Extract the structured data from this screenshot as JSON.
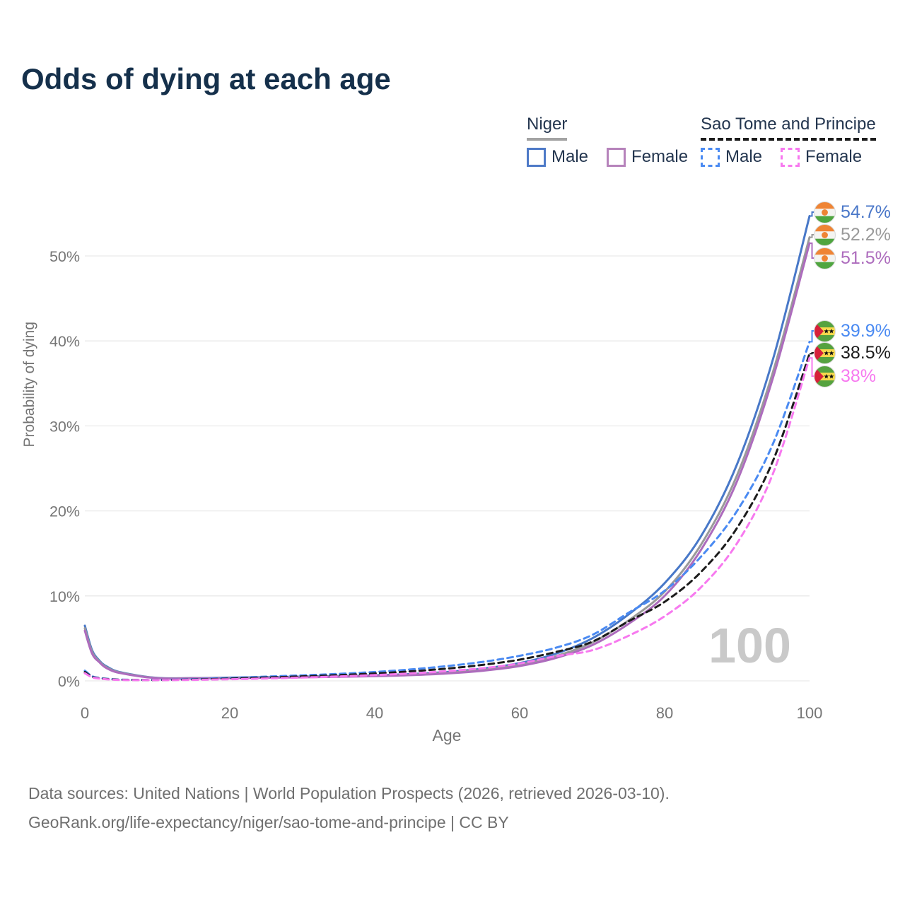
{
  "legend": {
    "groups": [
      {
        "country": "Niger",
        "underline": "solid",
        "underline_color": "#a3a3a3",
        "items": [
          {
            "label": "Male",
            "color": "#4e7ac7",
            "dashed": false
          },
          {
            "label": "Female",
            "color": "#b683bb",
            "dashed": false
          }
        ]
      },
      {
        "country": "Sao Tome and Principe",
        "underline": "dashed",
        "underline_color": "#1c1c1c",
        "items": [
          {
            "label": "Male",
            "color": "#4a8af2",
            "dashed": true
          },
          {
            "label": "Female",
            "color": "#f779ef",
            "dashed": true
          }
        ]
      }
    ]
  },
  "chart_data": {
    "type": "line",
    "title": "Odds of dying at each age",
    "xlabel": "Age",
    "ylabel": "Probability of dying",
    "xlim": [
      0,
      100
    ],
    "ylim": [
      0,
      57
    ],
    "grid": "horizontal",
    "legend_position": "top-right",
    "watermark": "100",
    "x_ticks": [
      0,
      20,
      40,
      60,
      80,
      100
    ],
    "y_tick_values": [
      0,
      10,
      20,
      30,
      40,
      50
    ],
    "y_tick_labels": [
      "0%",
      "10%",
      "20%",
      "30%",
      "40%",
      "50%"
    ],
    "ages": [
      0,
      1,
      2,
      3,
      5,
      10,
      15,
      20,
      25,
      30,
      35,
      40,
      45,
      50,
      55,
      60,
      65,
      70,
      75,
      80,
      85,
      90,
      95,
      100
    ],
    "series": [
      {
        "name": "Niger — Male",
        "color": "#4878c8",
        "dash": null,
        "end_value": 54.7,
        "values": [
          6.5,
          3.6,
          2.4,
          1.7,
          1.0,
          0.35,
          0.33,
          0.38,
          0.44,
          0.5,
          0.57,
          0.66,
          0.8,
          1.05,
          1.45,
          2.1,
          3.2,
          5.0,
          7.8,
          11.5,
          17.0,
          25.5,
          38.0,
          54.7
        ]
      },
      {
        "name": "Niger — Both sexes",
        "color": "#9a9a9a",
        "dash": null,
        "end_value": 52.2,
        "values": [
          6.2,
          3.4,
          2.3,
          1.6,
          0.95,
          0.33,
          0.31,
          0.35,
          0.4,
          0.46,
          0.52,
          0.6,
          0.73,
          0.95,
          1.3,
          1.9,
          2.9,
          4.5,
          7.1,
          10.5,
          16.0,
          24.2,
          36.5,
          52.2
        ]
      },
      {
        "name": "Niger — Female",
        "color": "#ad6cbd",
        "dash": null,
        "end_value": 51.5,
        "values": [
          5.9,
          3.2,
          2.2,
          1.5,
          0.9,
          0.31,
          0.29,
          0.32,
          0.37,
          0.42,
          0.48,
          0.55,
          0.67,
          0.87,
          1.2,
          1.75,
          2.7,
          4.2,
          6.7,
          10.0,
          15.4,
          23.5,
          35.8,
          51.5
        ]
      },
      {
        "name": "Sao Tome and Principe — Male",
        "color": "#4a8af2",
        "dash": [
          8,
          6
        ],
        "end_value": 39.9,
        "values": [
          1.2,
          0.55,
          0.35,
          0.25,
          0.15,
          0.12,
          0.2,
          0.35,
          0.5,
          0.65,
          0.82,
          1.05,
          1.35,
          1.75,
          2.25,
          2.95,
          3.9,
          5.4,
          8.0,
          10.6,
          14.6,
          20.0,
          28.0,
          39.9
        ]
      },
      {
        "name": "Sao Tome and Principe — Both sexes",
        "color": "#1c1c1c",
        "dash": [
          8,
          6
        ],
        "end_value": 38.5,
        "values": [
          1.05,
          0.48,
          0.3,
          0.22,
          0.13,
          0.1,
          0.16,
          0.27,
          0.4,
          0.53,
          0.68,
          0.87,
          1.12,
          1.45,
          1.9,
          2.5,
          3.4,
          4.6,
          7.0,
          9.3,
          12.8,
          18.0,
          26.0,
          38.5
        ]
      },
      {
        "name": "Sao Tome and Principe — Female",
        "color": "#f779ef",
        "dash": [
          8,
          6
        ],
        "end_value": 38.0,
        "values": [
          0.9,
          0.42,
          0.27,
          0.19,
          0.11,
          0.09,
          0.12,
          0.19,
          0.28,
          0.39,
          0.52,
          0.68,
          0.88,
          1.15,
          1.5,
          2.05,
          2.9,
          3.6,
          5.3,
          7.6,
          11.0,
          16.2,
          24.5,
          38.0
        ]
      }
    ]
  },
  "end_labels": [
    {
      "text": "54.7%",
      "color": "#4a77c8",
      "flag": "niger"
    },
    {
      "text": "52.2%",
      "color": "#9a9a9a",
      "flag": "niger"
    },
    {
      "text": "51.5%",
      "color": "#ad6cbd",
      "flag": "niger"
    },
    {
      "text": "39.9%",
      "color": "#4a8af2",
      "flag": "stp"
    },
    {
      "text": "38.5%",
      "color": "#1c1c1c",
      "flag": "stp"
    },
    {
      "text": "38%",
      "color": "#f779ef",
      "flag": "stp"
    }
  ],
  "footer": {
    "line1": "Data sources: United Nations | World Population Prospects (2026, retrieved 2026-03-10).",
    "line2": "GeoRank.org/life-expectancy/niger/sao-tome-and-principe | CC BY"
  }
}
